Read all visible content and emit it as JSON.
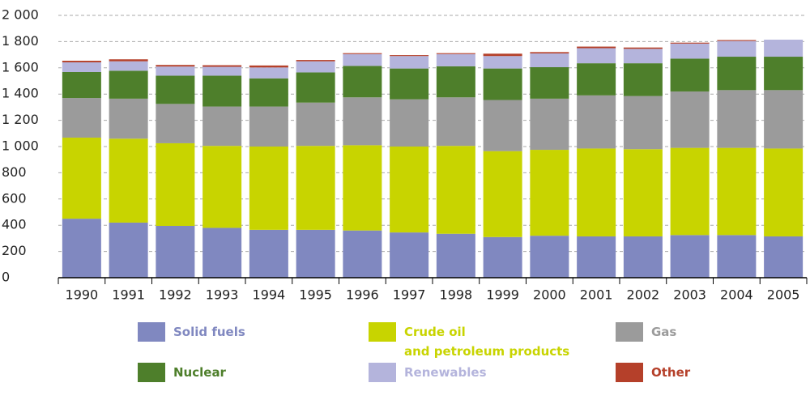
{
  "chart_data": {
    "type": "stacked_bar",
    "categories": [
      "1990",
      "1991",
      "1992",
      "1993",
      "1994",
      "1995",
      "1996",
      "1997",
      "1998",
      "1999",
      "2000",
      "2001",
      "2002",
      "2003",
      "2004",
      "2005"
    ],
    "series": [
      {
        "name": "Solid fuels",
        "color": "#8088c0",
        "values": [
          450,
          420,
          395,
          380,
          365,
          365,
          360,
          345,
          335,
          310,
          320,
          315,
          315,
          325,
          325,
          315
        ]
      },
      {
        "name": "Crude oil\nand petroleum products",
        "color": "#c8d400",
        "values": [
          618,
          640,
          630,
          625,
          635,
          640,
          650,
          655,
          670,
          655,
          655,
          670,
          665,
          665,
          665,
          670
        ]
      },
      {
        "name": "Gas",
        "color": "#9b9b9b",
        "values": [
          302,
          305,
          300,
          300,
          305,
          330,
          365,
          360,
          370,
          390,
          390,
          405,
          405,
          430,
          440,
          445
        ]
      },
      {
        "name": "Nuclear",
        "color": "#4e7f2b",
        "values": [
          198,
          213,
          215,
          235,
          215,
          230,
          240,
          235,
          237,
          240,
          240,
          245,
          250,
          250,
          255,
          255
        ]
      },
      {
        "name": "Renewables",
        "color": "#b4b4dc",
        "values": [
          74,
          72,
          70,
          68,
          83,
          85,
          90,
          95,
          93,
          95,
          105,
          115,
          110,
          115,
          120,
          130
        ]
      },
      {
        "name": "Other",
        "color": "#b5402a",
        "values": [
          12,
          15,
          12,
          12,
          15,
          10,
          7,
          7,
          7,
          18,
          10,
          12,
          10,
          7,
          7,
          0
        ]
      }
    ],
    "ylim": [
      0,
      2000
    ],
    "yticks": [
      0,
      200,
      400,
      600,
      800,
      {
        "value": 1000,
        "label": "1 000"
      },
      {
        "value": 1200,
        "label": "1 200"
      },
      {
        "value": 1400,
        "label": "1 400"
      },
      {
        "value": 1600,
        "label": "1 600"
      },
      {
        "value": 1800,
        "label": "1 800"
      },
      {
        "value": 2000,
        "label": "2 000"
      }
    ],
    "grid": true
  }
}
